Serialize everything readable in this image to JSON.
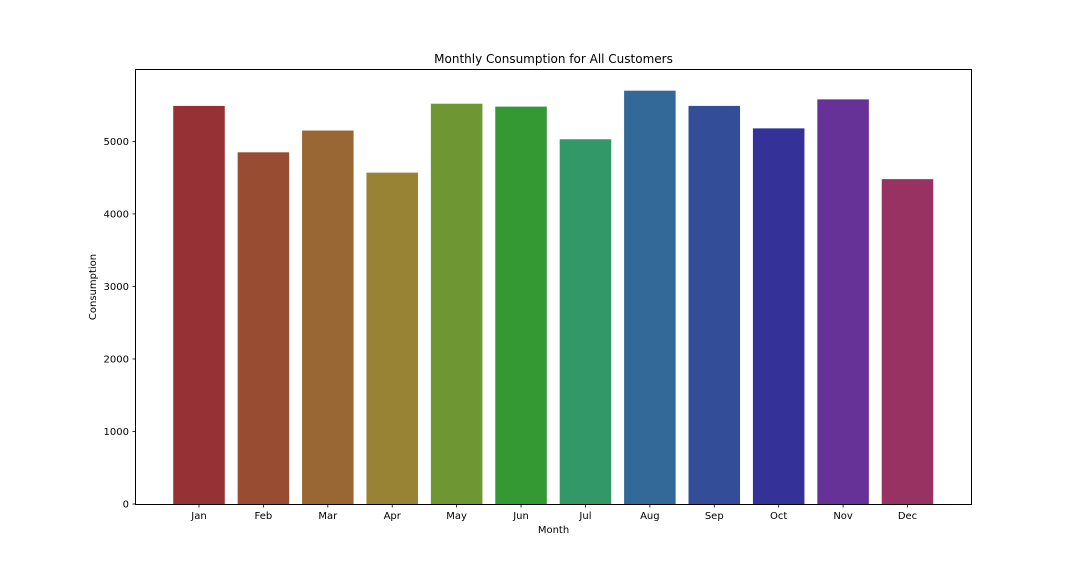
{
  "chart_data": {
    "type": "bar",
    "title": "Monthly Consumption for All Customers",
    "xlabel": "Month",
    "ylabel": "Consumption",
    "categories": [
      "Jan",
      "Feb",
      "Mar",
      "Apr",
      "May",
      "Jun",
      "Jul",
      "Aug",
      "Sep",
      "Oct",
      "Nov",
      "Dec"
    ],
    "values": [
      5490,
      4850,
      5150,
      4570,
      5520,
      5480,
      5030,
      5700,
      5490,
      5180,
      5580,
      4480
    ],
    "colors": [
      "#963135",
      "#984d33",
      "#986733",
      "#988233",
      "#6e9633",
      "#349833",
      "#339868",
      "#336998",
      "#334d98",
      "#343298",
      "#673298",
      "#983263"
    ],
    "ylim": [
      0,
      5985
    ],
    "yticks": [
      0,
      1000,
      2000,
      3000,
      4000,
      5000
    ],
    "grid": false,
    "legend": "none"
  }
}
